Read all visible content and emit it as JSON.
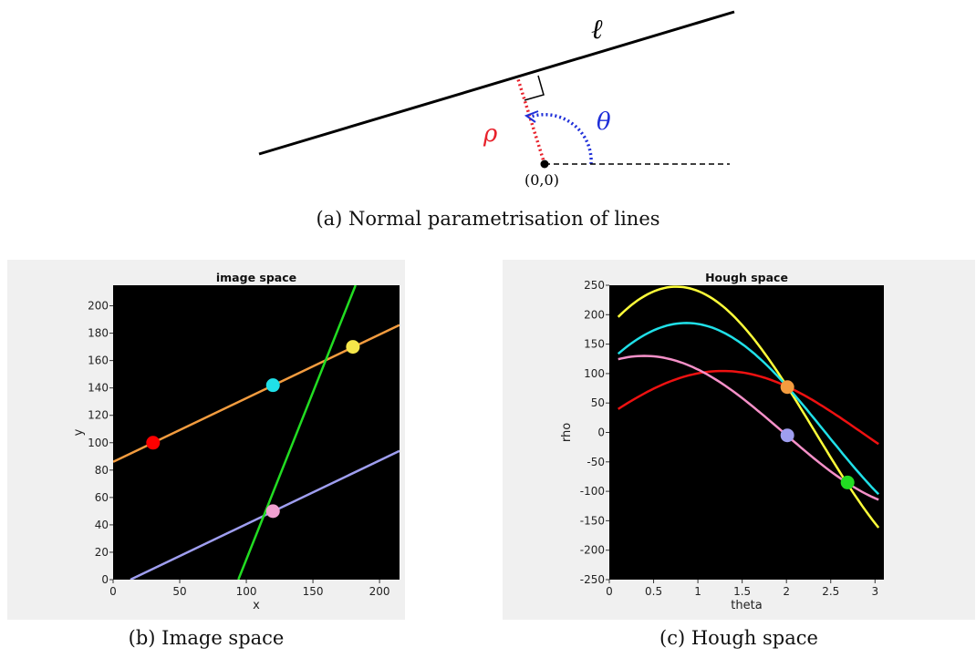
{
  "figure_a": {
    "line_label": "ℓ",
    "rho_label": "ρ",
    "theta_label": "θ",
    "origin_label": "(0,0)",
    "caption": "(a) Normal parametrisation of lines",
    "colors": {
      "line": "#000000",
      "rho": "#e8212b",
      "theta": "#1f2fd8"
    }
  },
  "captions": {
    "b": "(b) Image space",
    "c": "(c) Hough space"
  },
  "chart_data": [
    {
      "type": "line",
      "title": "image space",
      "xlabel": "x",
      "ylabel": "y",
      "xlim": [
        0,
        215
      ],
      "ylim": [
        0,
        215
      ],
      "xticks": [
        0,
        50,
        100,
        150,
        200
      ],
      "yticks": [
        0,
        20,
        40,
        60,
        80,
        100,
        120,
        140,
        160,
        180,
        200
      ],
      "background": "#000000",
      "lines": [
        {
          "color": "#f39c3f",
          "x": [
            0,
            215
          ],
          "y": [
            86,
            186
          ]
        },
        {
          "color": "#9f9ef0",
          "x": [
            13,
            215
          ],
          "y": [
            0,
            94
          ]
        },
        {
          "color": "#22dd22",
          "x": [
            94,
            182
          ],
          "y": [
            0,
            215
          ]
        }
      ],
      "points": [
        {
          "x": 30,
          "y": 100,
          "color": "#ff0000"
        },
        {
          "x": 120,
          "y": 142,
          "color": "#20e0e8"
        },
        {
          "x": 180,
          "y": 170,
          "color": "#f5e64a"
        },
        {
          "x": 120,
          "y": 50,
          "color": "#f0a0d0"
        }
      ]
    },
    {
      "type": "line",
      "title": "Hough space",
      "xlabel": "theta",
      "ylabel": "rho",
      "xlim": [
        0,
        3.1
      ],
      "ylim": [
        -250,
        250
      ],
      "xticks": [
        0,
        0.5,
        1,
        1.5,
        2,
        2.5,
        3
      ],
      "yticks": [
        -250,
        -200,
        -150,
        -100,
        -50,
        0,
        50,
        100,
        150,
        200,
        250
      ],
      "background": "#000000",
      "theta_range": [
        0.1,
        3.04
      ],
      "curves": [
        {
          "color": "#ffff3a",
          "px": 180,
          "py": 170
        },
        {
          "color": "#20e0e8",
          "px": 120,
          "py": 142
        },
        {
          "color": "#ee1111",
          "px": 30,
          "py": 100
        },
        {
          "color": "#f590c8",
          "px": 120,
          "py": 50
        }
      ],
      "points": [
        {
          "x": 2.01,
          "y": 77,
          "color": "#f39c3f"
        },
        {
          "x": 2.01,
          "y": -5,
          "color": "#9f9ef0"
        },
        {
          "x": 2.69,
          "y": -85,
          "color": "#22dd22"
        }
      ]
    }
  ]
}
